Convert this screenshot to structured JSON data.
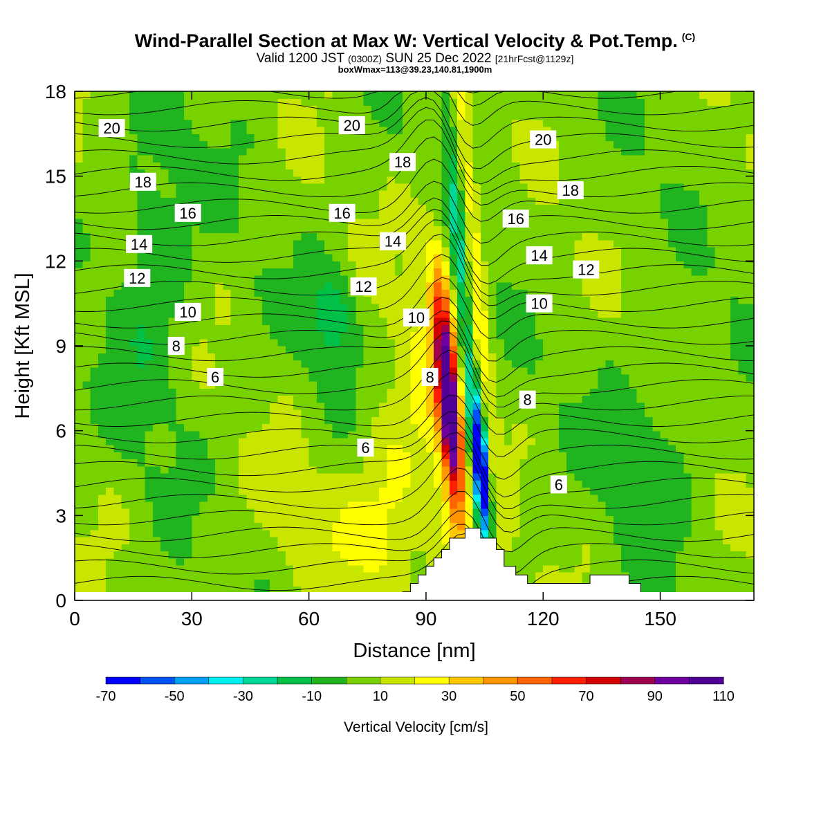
{
  "header": {
    "title": "Wind-Parallel Section at Max W: Vertical Velocity & Pot.Temp.",
    "copyright": "(C)",
    "valid_prefix": "Valid 1200 JST",
    "valid_utc": "(0300Z)",
    "valid_date": "SUN 25 Dec 2022",
    "forecast": "[21hrFcst@1129z]",
    "boxline": "boxWmax=113@39.23,140.81,1900m"
  },
  "chart_data": {
    "type": "heatmap",
    "title": "Wind-Parallel Section at Max W: Vertical Velocity & Pot.Temp.",
    "xlabel": "Distance [nm]",
    "ylabel": "Height [Kft MSL]",
    "xlim": [
      0,
      174
    ],
    "ylim": [
      0,
      18
    ],
    "x_ticks": [
      "0",
      "30",
      "60",
      "90",
      "120",
      "150"
    ],
    "y_ticks": [
      "0",
      "3",
      "6",
      "9",
      "12",
      "15",
      "18"
    ],
    "colorbar": {
      "label": "Vertical Velocity [cm/s]",
      "tick_labels": [
        "-70",
        "-50",
        "-30",
        "-10",
        "10",
        "30",
        "50",
        "70",
        "90",
        "110"
      ],
      "levels": [
        -70,
        -60,
        -50,
        -40,
        -30,
        -20,
        -10,
        0,
        10,
        20,
        30,
        40,
        50,
        60,
        70,
        80,
        90,
        100,
        110
      ],
      "colors": [
        "#0000ff",
        "#0050f5",
        "#00a0f5",
        "#00f0f0",
        "#00d898",
        "#00c048",
        "#20b420",
        "#78d200",
        "#c8e600",
        "#ffff00",
        "#ffc800",
        "#ff9600",
        "#ff6400",
        "#ff1e00",
        "#d20000",
        "#a00050",
        "#6e00a0",
        "#500096"
      ]
    },
    "isentrope_labels": [
      {
        "value": "20",
        "x": 9.5,
        "y": 16.7
      },
      {
        "value": "18",
        "x": 17.5,
        "y": 14.8
      },
      {
        "value": "16",
        "x": 29.0,
        "y": 13.7
      },
      {
        "value": "14",
        "x": 16.5,
        "y": 12.6
      },
      {
        "value": "12",
        "x": 16.0,
        "y": 11.4
      },
      {
        "value": "10",
        "x": 29.0,
        "y": 10.2
      },
      {
        "value": "8",
        "x": 26.0,
        "y": 9.0
      },
      {
        "value": "6",
        "x": 36.0,
        "y": 7.9
      },
      {
        "value": "20",
        "x": 71.0,
        "y": 16.8
      },
      {
        "value": "16",
        "x": 68.5,
        "y": 13.7
      },
      {
        "value": "18",
        "x": 84.0,
        "y": 15.5
      },
      {
        "value": "14",
        "x": 81.5,
        "y": 12.7
      },
      {
        "value": "12",
        "x": 74.0,
        "y": 11.1
      },
      {
        "value": "10",
        "x": 87.5,
        "y": 10.0
      },
      {
        "value": "8",
        "x": 91.0,
        "y": 7.9
      },
      {
        "value": "6",
        "x": 74.5,
        "y": 5.4
      },
      {
        "value": "20",
        "x": 120.0,
        "y": 16.3
      },
      {
        "value": "18",
        "x": 127.0,
        "y": 14.5
      },
      {
        "value": "16",
        "x": 113.0,
        "y": 13.5
      },
      {
        "value": "14",
        "x": 119.0,
        "y": 12.2
      },
      {
        "value": "12",
        "x": 131.0,
        "y": 11.7
      },
      {
        "value": "10",
        "x": 119.0,
        "y": 10.5
      },
      {
        "value": "8",
        "x": 116.0,
        "y": 7.1
      },
      {
        "value": "6",
        "x": 124.0,
        "y": 4.1
      }
    ],
    "terrain": [
      [
        84,
        0
      ],
      [
        84,
        0.3
      ],
      [
        86,
        0.3
      ],
      [
        86,
        0.6
      ],
      [
        88,
        0.6
      ],
      [
        88,
        0.9
      ],
      [
        90,
        0.9
      ],
      [
        90,
        1.2
      ],
      [
        92,
        1.2
      ],
      [
        92,
        1.5
      ],
      [
        94,
        1.5
      ],
      [
        94,
        1.8
      ],
      [
        96,
        1.8
      ],
      [
        96,
        2.2
      ],
      [
        100,
        2.2
      ],
      [
        100,
        2.55
      ],
      [
        104,
        2.55
      ],
      [
        104,
        2.2
      ],
      [
        108,
        2.2
      ],
      [
        108,
        1.8
      ],
      [
        110,
        1.8
      ],
      [
        110,
        1.2
      ],
      [
        113,
        1.2
      ],
      [
        113,
        0.9
      ],
      [
        116,
        0.9
      ],
      [
        116,
        0.6
      ],
      [
        132,
        0.6
      ],
      [
        132,
        0.9
      ],
      [
        142,
        0.9
      ],
      [
        142,
        0.6
      ],
      [
        145,
        0.6
      ],
      [
        145,
        0
      ]
    ]
  }
}
